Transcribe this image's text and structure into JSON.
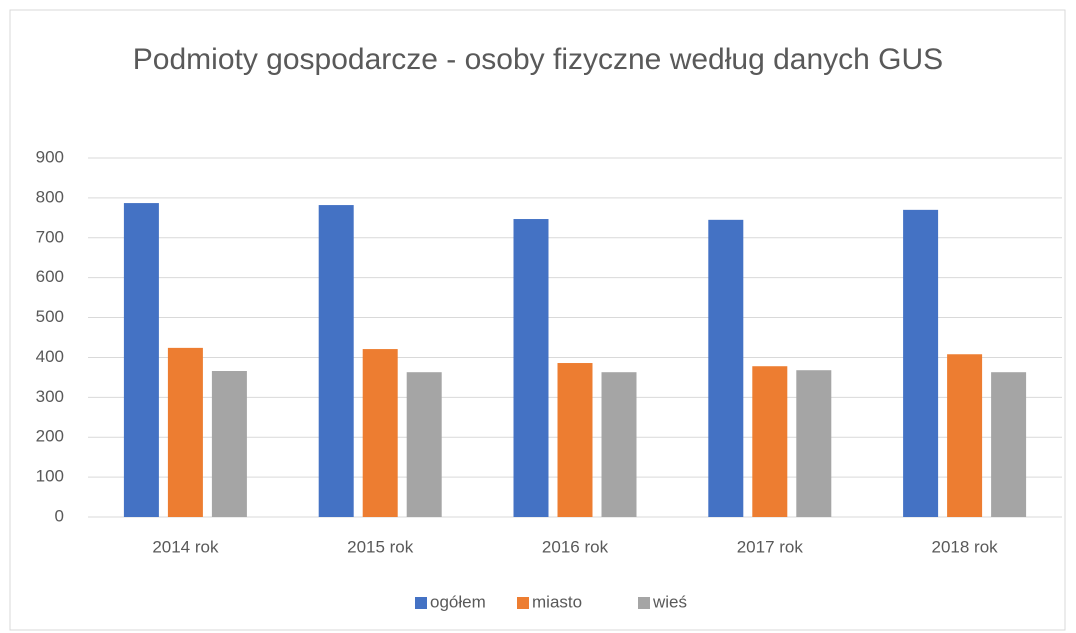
{
  "chart_data": {
    "type": "bar",
    "title": "Podmioty gospodarcze - osoby fizyczne według danych GUS",
    "categories": [
      "2014 rok",
      "2015 rok",
      "2016 rok",
      "2017 rok",
      "2018 rok"
    ],
    "series": [
      {
        "name": "ogółem",
        "color": "#4472c4",
        "values": [
          787,
          782,
          747,
          745,
          770
        ]
      },
      {
        "name": "miasto",
        "color": "#ed7d31",
        "values": [
          424,
          421,
          386,
          378,
          408
        ]
      },
      {
        "name": "wieś",
        "color": "#a5a5a5",
        "values": [
          366,
          363,
          363,
          368,
          363
        ]
      }
    ],
    "ylim": [
      0,
      900
    ],
    "yticks": [
      0,
      100,
      200,
      300,
      400,
      500,
      600,
      700,
      800,
      900
    ],
    "grid": true,
    "legend": "bottom"
  }
}
